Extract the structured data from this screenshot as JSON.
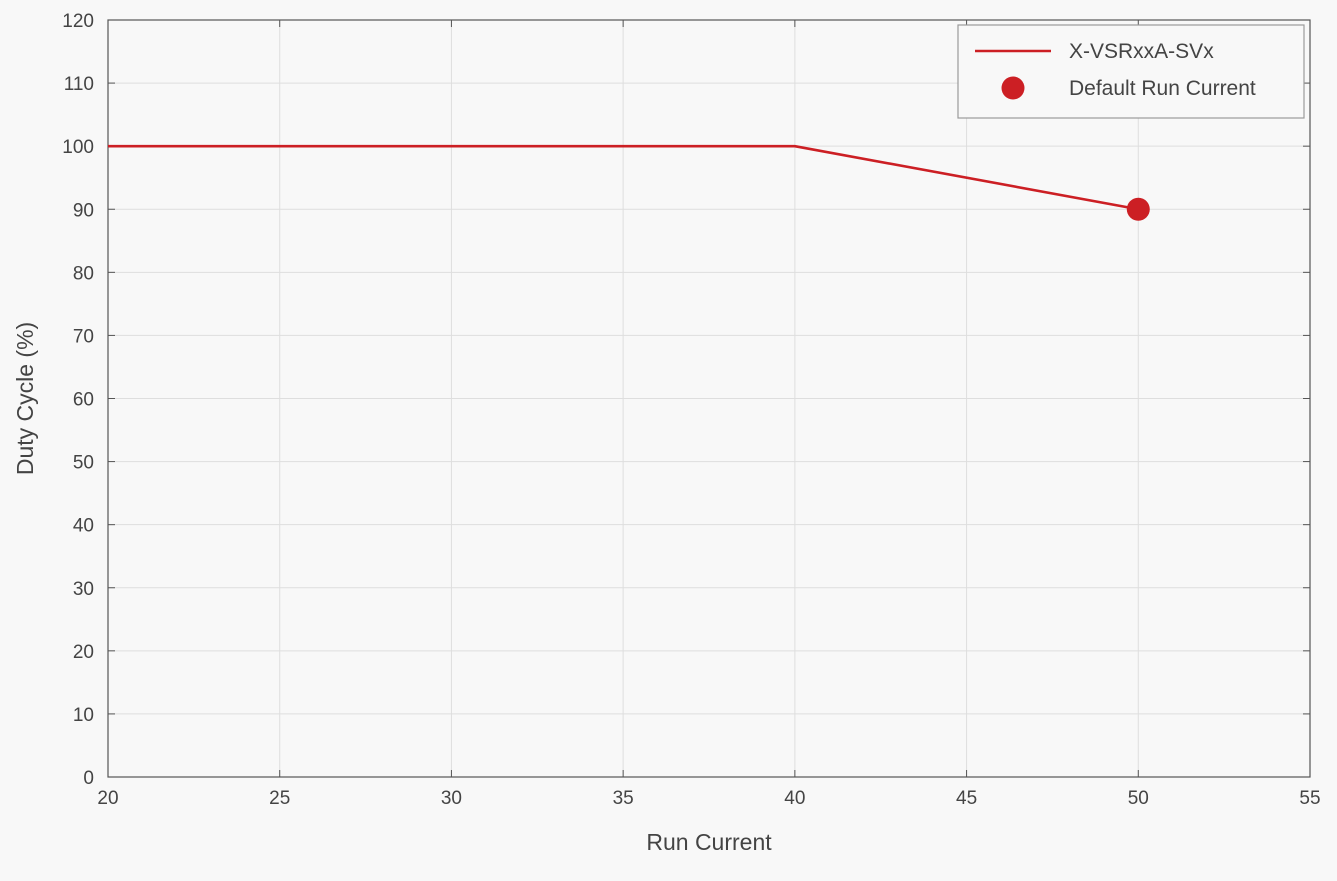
{
  "chart_data": {
    "type": "line",
    "title": "",
    "xlabel": "Run Current",
    "ylabel": "Duty Cycle (%)",
    "xlim": [
      20,
      55
    ],
    "ylim": [
      0,
      120
    ],
    "xticks": [
      20,
      25,
      30,
      35,
      40,
      45,
      50,
      55
    ],
    "yticks": [
      0,
      10,
      20,
      30,
      40,
      50,
      60,
      70,
      80,
      90,
      100,
      110,
      120
    ],
    "grid": true,
    "legend_position": "top-right",
    "series": [
      {
        "name": "X-VSRxxA-SVx",
        "kind": "line",
        "color": "#cc1f24",
        "x": [
          20,
          40,
          50
        ],
        "y": [
          100,
          100,
          90
        ]
      },
      {
        "name": "Default Run Current",
        "kind": "marker",
        "color": "#cc1f24",
        "x": [
          50
        ],
        "y": [
          90
        ]
      }
    ]
  }
}
